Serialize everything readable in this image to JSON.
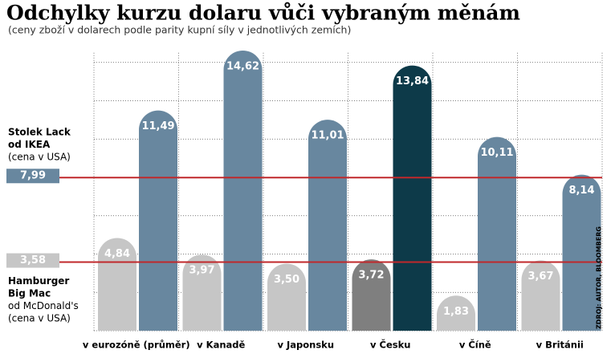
{
  "chart_data": {
    "type": "bar",
    "title": "Odchylky kurzu dolaru vůči vybraným měnám",
    "subtitle": "(ceny zboží v dolarech podle parity kupní síly v jednotlivých zemích)",
    "categories": [
      "v eurozóně (průměr)",
      "v Kanadě",
      "v Japonsku",
      "v Česku",
      "v Číně",
      "v Británii"
    ],
    "series": [
      {
        "name": "Hamburger Big Mac od McDonald's",
        "values": [
          4.84,
          3.97,
          3.5,
          3.72,
          1.83,
          3.67
        ],
        "value_labels": [
          "4,84",
          "3,97",
          "3,50",
          "3,72",
          "1,83",
          "3,67"
        ],
        "colors": [
          "#c6c6c6",
          "#c6c6c6",
          "#c6c6c6",
          "#7f7f7f",
          "#c6c6c6",
          "#c6c6c6"
        ]
      },
      {
        "name": "Stolek Lack od IKEA",
        "values": [
          11.49,
          14.62,
          11.01,
          13.84,
          10.11,
          8.14
        ],
        "value_labels": [
          "11,49",
          "14,62",
          "11,01",
          "13,84",
          "10,11",
          "8,14"
        ],
        "colors": [
          "#68879f",
          "#68879f",
          "#68879f",
          "#0d3a49",
          "#68879f",
          "#68879f"
        ]
      }
    ],
    "reference_lines": [
      {
        "value": 7.99,
        "label": "7,99",
        "color": "#68879f",
        "annotation": [
          "Stolek Lack",
          "od IKEA",
          "(cena v USA)"
        ]
      },
      {
        "value": 3.58,
        "label": "3,58",
        "color": "#c6c6c6",
        "annotation": [
          "Hamburger",
          "Big Mac",
          "od McDonald's",
          "(cena v USA)"
        ]
      }
    ],
    "source": "ZDROJ: AUTOR, BLOOMBERG",
    "ylim": [
      0,
      16
    ],
    "yticks": [
      0,
      2,
      4,
      6,
      8,
      10,
      12,
      14
    ],
    "show_tick_labels": false,
    "grid": true
  }
}
